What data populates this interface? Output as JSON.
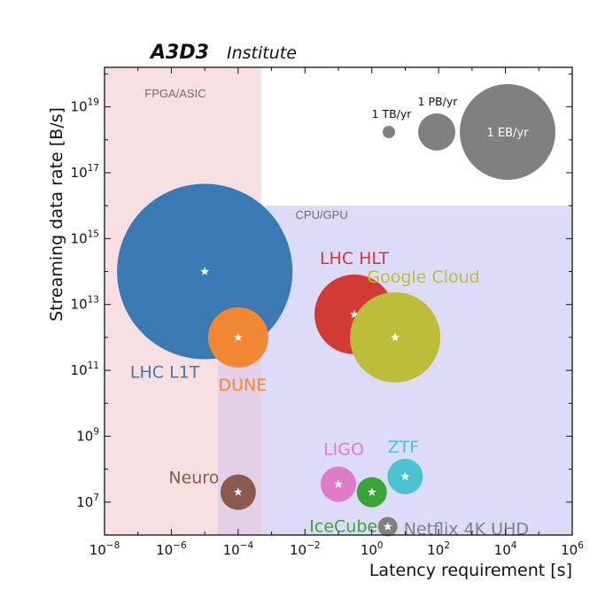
{
  "header": {
    "brand": "A3D3",
    "brand_suffix": "Institute"
  },
  "chart_data": {
    "type": "scatter",
    "title": "",
    "xlabel": "Latency requirement [s]",
    "ylabel": "Streaming data rate [B/s]",
    "xscale": "log",
    "yscale": "log",
    "xlim_exp": [
      -8,
      6
    ],
    "ylim_exp": [
      6,
      20.2
    ],
    "x_ticks_exp": [
      -8,
      -6,
      -4,
      -2,
      0,
      2,
      4,
      6
    ],
    "y_ticks_exp": [
      7,
      9,
      11,
      13,
      15,
      17,
      19
    ],
    "tick_base": "10",
    "regions": [
      {
        "label": "FPGA/ASIC",
        "x_exp": [
          -8,
          -3.3
        ],
        "y_exp": [
          6,
          20.2
        ],
        "color": "#f8dfe1"
      },
      {
        "label": "CPU/GPU",
        "x_exp": [
          -4.6,
          6
        ],
        "y_exp": [
          6,
          16
        ],
        "color": "#dcdcfa"
      }
    ],
    "series": [
      {
        "name": "LHC L1T",
        "x": 1e-05,
        "y": 100000000000000.0,
        "color": "#3a79b4",
        "size": "~7 EB/yr"
      },
      {
        "name": "DUNE",
        "x": 0.0001,
        "y": 1000000000000.0,
        "color": "#f28733",
        "size": ""
      },
      {
        "name": "LHC HLT",
        "x": 0.3,
        "y": 5000000000000.0,
        "color": "#d23a34",
        "size": ""
      },
      {
        "name": "Google Cloud",
        "x": 5,
        "y": 1000000000000.0,
        "color": "#bdbd3a",
        "size": ""
      },
      {
        "name": "Neuro",
        "x": 0.0001,
        "y": 20000000.0,
        "color": "#8a5a4e",
        "size": ""
      },
      {
        "name": "LIGO",
        "x": 0.1,
        "y": 35000000.0,
        "color": "#e07bc8",
        "size": ""
      },
      {
        "name": "IceCube",
        "x": 1,
        "y": 20000000.0,
        "color": "#3aa437",
        "size": ""
      },
      {
        "name": "ZTF",
        "x": 10,
        "y": 60000000.0,
        "color": "#4bc3d1",
        "size": ""
      },
      {
        "name": "Netflix 4K UHD",
        "x": 3,
        "y": 1800000.0,
        "color": "#808080",
        "size": ""
      }
    ],
    "size_legend": [
      {
        "label": "1 TB/yr",
        "color": "#808080"
      },
      {
        "label": "1 PB/yr",
        "color": "#808080"
      },
      {
        "label": "1 EB/yr",
        "color": "#808080"
      }
    ],
    "grid": false,
    "legend_position": "top-right"
  }
}
